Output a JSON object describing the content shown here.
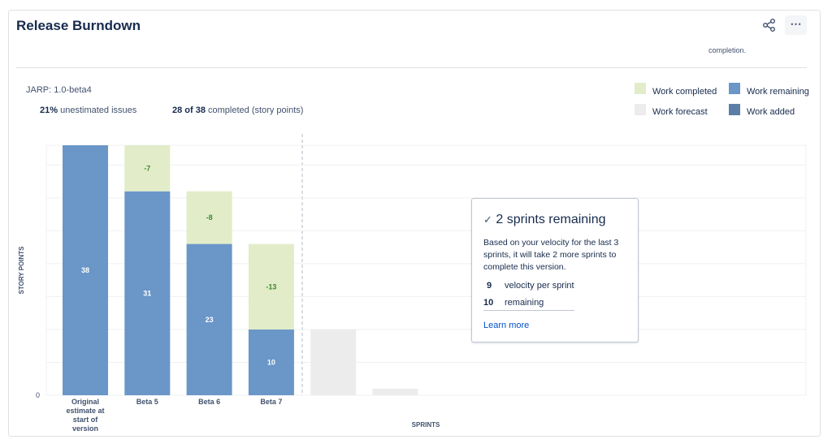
{
  "header": {
    "title": "Release Burndown",
    "truncated_note": "completion."
  },
  "summary": {
    "version": "JARP: 1.0-beta4",
    "unestimated_pct": "21%",
    "unestimated_text": "unestimated issues",
    "completed_count": "28 of 38",
    "completed_text": "completed (story points)"
  },
  "chart_data": {
    "type": "bar",
    "stacked": true,
    "y_label": "STORY POINTS",
    "x_label": "SPRINTS",
    "categories": [
      "Original estimate at start of version",
      "Beta 5",
      "Beta 6",
      "Beta 7",
      null,
      null
    ],
    "series": [
      {
        "name": "Work remaining",
        "color": "#6a96c8",
        "values": [
          38,
          31,
          23,
          10,
          null,
          null
        ]
      },
      {
        "name": "Work completed",
        "color": "#e2ecc9",
        "values": [
          null,
          -7,
          -8,
          -13,
          null,
          null
        ]
      },
      {
        "name": "Work forecast",
        "color": "#ececec",
        "values": [
          null,
          null,
          null,
          null,
          10,
          1
        ]
      },
      {
        "name": "Work added",
        "color": "#5c7ea6",
        "values": [
          null,
          null,
          null,
          null,
          null,
          null
        ]
      }
    ],
    "ylim": [
      0,
      38
    ],
    "yticks": [
      0
    ],
    "grid_lines": [
      5,
      10,
      15,
      20,
      25,
      30,
      35
    ],
    "grid": true
  },
  "popup": {
    "title": "2 sprints remaining",
    "body": "Based on your velocity for the last 3 sprints, it will take 2 more sprints to complete this version.",
    "stats": [
      {
        "value": "9",
        "label": "velocity per sprint"
      },
      {
        "value": "10",
        "label": "remaining"
      }
    ],
    "link": "Learn more"
  }
}
